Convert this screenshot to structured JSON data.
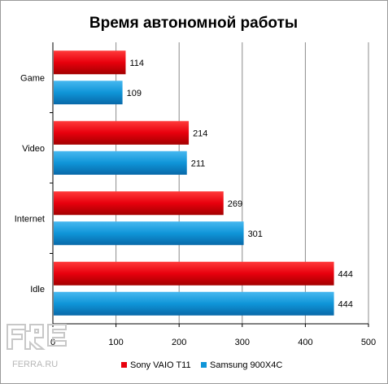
{
  "chart_data": {
    "type": "bar",
    "orientation": "horizontal",
    "title": "Время автономной работы",
    "categories": [
      "Game",
      "Video",
      "Internet",
      "Idle"
    ],
    "series": [
      {
        "name": "Sony VAIO T11",
        "values": [
          114,
          214,
          269,
          444
        ],
        "color": "#e8000d"
      },
      {
        "name": "Samsung 900X4C",
        "values": [
          109,
          211,
          301,
          444
        ],
        "color": "#0f95d8"
      }
    ],
    "xlim": [
      0,
      500
    ],
    "xticks": [
      0,
      100,
      200,
      300,
      400,
      500
    ],
    "grid": true,
    "legend": "bottom"
  },
  "watermark": {
    "text": "FERRA.RU"
  }
}
